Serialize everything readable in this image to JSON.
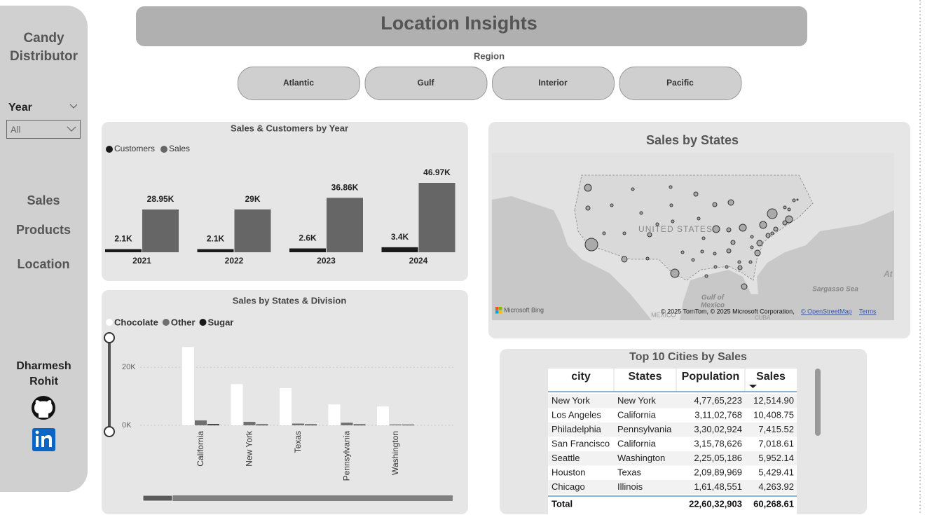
{
  "sidebar": {
    "title": "Candy Distributor",
    "year_label": "Year",
    "year_value": "All",
    "nav": [
      "Sales",
      "Products",
      "Location"
    ],
    "author": "Dharmesh Rohit"
  },
  "header": {
    "title": "Location Insights"
  },
  "region_slicer": {
    "label": "Region",
    "options": [
      "Atlantic",
      "Gulf",
      "Interior",
      "Pacific"
    ]
  },
  "chart_data": [
    {
      "type": "bar",
      "title": "Sales & Customers by Year",
      "categories": [
        "2021",
        "2022",
        "2023",
        "2024"
      ],
      "series": [
        {
          "name": "Customers",
          "color": "#1a1a1a",
          "values": [
            2100,
            2100,
            2600,
            3400
          ],
          "value_labels": [
            "2.1K",
            "2.1K",
            "2.6K",
            "3.4K"
          ]
        },
        {
          "name": "Sales",
          "color": "#666666",
          "values": [
            28950,
            29000,
            36860,
            46970
          ],
          "value_labels": [
            "28.95K",
            "29K",
            "36.86K",
            "46.97K"
          ]
        }
      ]
    },
    {
      "type": "bar",
      "title": "Sales by States & Division",
      "categories": [
        "California",
        "New York",
        "Texas",
        "Pennsylvania",
        "Washington"
      ],
      "series": [
        {
          "name": "Chocolate",
          "color": "#ffffff",
          "values": [
            27000,
            14200,
            12800,
            7200,
            6500
          ]
        },
        {
          "name": "Other",
          "color": "#707070",
          "values": [
            1700,
            1200,
            600,
            900,
            300
          ]
        },
        {
          "name": "Sugar",
          "color": "#1a1a1a",
          "values": [
            400,
            300,
            300,
            300,
            200
          ]
        }
      ],
      "ylim": [
        0,
        29000
      ],
      "yticks": [
        {
          "value": 0,
          "label": "0K"
        },
        {
          "value": 20000,
          "label": "20K"
        }
      ],
      "grid": true
    }
  ],
  "map": {
    "title": "Sales by States",
    "country_label": "UNITED STATES",
    "gulf_label": [
      "Gulf of",
      "Mexico"
    ],
    "sea_label": "Sargasso Sea",
    "mexico_label": "MEXICO",
    "cuba_label": "CUBA",
    "ocean_label": "At",
    "provider": "Microsoft Bing",
    "attribution": "© 2025 TomTom, © 2025 Microsoft Corporation,",
    "osm": "© OpenStreetMap",
    "terms": "Terms"
  },
  "table": {
    "title": "Top 10 Cities by Sales",
    "columns": [
      "city",
      "States",
      "Population",
      "Sales"
    ],
    "rows": [
      [
        "New York",
        "New York",
        "4,77,65,223",
        "12,514.90"
      ],
      [
        "Los Angeles",
        "California",
        "3,11,02,768",
        "10,408.75"
      ],
      [
        "Philadelphia",
        "Pennsylvania",
        "3,30,02,924",
        "7,415.52"
      ],
      [
        "San Francisco",
        "California",
        "3,15,78,626",
        "7,018.61"
      ],
      [
        "Seattle",
        "Washington",
        "2,25,05,186",
        "5,952.14"
      ],
      [
        "Houston",
        "Texas",
        "2,09,89,969",
        "5,429.41"
      ],
      [
        "Chicago",
        "Illinois",
        "1,61,48,551",
        "4,263.92"
      ]
    ],
    "total": {
      "label": "Total",
      "population": "22,60,32,903",
      "sales": "60,268.61"
    }
  }
}
